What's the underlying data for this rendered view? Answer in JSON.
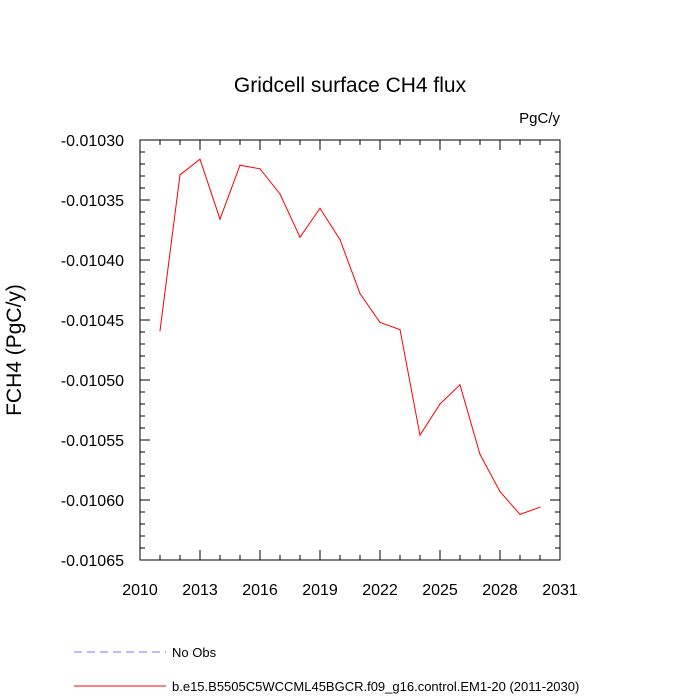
{
  "chart_data": {
    "type": "line",
    "title": "Gridcell surface CH4 flux",
    "units": "PgC/y",
    "xlabel": "",
    "ylabel": "FCH4  (PgC/y)",
    "xlim": [
      2010,
      2031
    ],
    "ylim": [
      -0.01065,
      -0.0103
    ],
    "x_ticks": [
      "2010",
      "2013",
      "2016",
      "2019",
      "2022",
      "2025",
      "2028",
      "2031"
    ],
    "y_ticks": [
      "-0.01030",
      "-0.01035",
      "-0.01040",
      "-0.01045",
      "-0.01050",
      "-0.01055",
      "-0.01060",
      "-0.01065"
    ],
    "grid": false,
    "legend_position": "bottom",
    "series": [
      {
        "name": "No Obs",
        "color": "#7777ff",
        "dash": true,
        "x": [],
        "y": []
      },
      {
        "name": "b.e15.B5505C5WCCML45BGCR.f09_g16.control.EM1-20 (2011-2030)",
        "color": "#ff0000",
        "dash": false,
        "x": [
          2011,
          2012,
          2013,
          2014,
          2015,
          2016,
          2017,
          2018,
          2019,
          2020,
          2021,
          2022,
          2023,
          2024,
          2025,
          2026,
          2027,
          2028,
          2029,
          2030
        ],
        "y": [
          -0.010459,
          -0.010329,
          -0.010316,
          -0.010366,
          -0.010321,
          -0.010324,
          -0.010345,
          -0.010381,
          -0.010357,
          -0.010383,
          -0.010428,
          -0.010452,
          -0.010458,
          -0.010546,
          -0.01052,
          -0.010504,
          -0.010562,
          -0.010593,
          -0.010612,
          -0.010606
        ]
      }
    ]
  }
}
